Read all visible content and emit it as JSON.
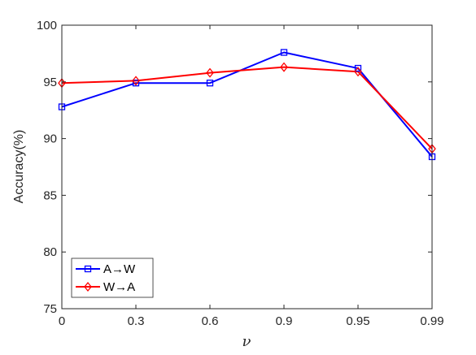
{
  "chart_data": {
    "type": "line",
    "categories": [
      "0",
      "0.3",
      "0.6",
      "0.9",
      "0.95",
      "0.99"
    ],
    "xlabel": "ν",
    "ylabel": "Accuracy(%)",
    "ylim": [
      75,
      100
    ],
    "yticks": [
      "75",
      "80",
      "85",
      "90",
      "95",
      "100"
    ],
    "grid": false,
    "legend_position": "bottom-left",
    "series": [
      {
        "name": "A→W",
        "color": "#0000ff",
        "marker": "square",
        "values": [
          92.8,
          94.9,
          94.9,
          97.6,
          96.2,
          88.4
        ]
      },
      {
        "name": "W→A",
        "color": "#ff0000",
        "marker": "diamond",
        "values": [
          94.9,
          95.1,
          95.8,
          96.3,
          95.9,
          89.1
        ]
      }
    ]
  }
}
